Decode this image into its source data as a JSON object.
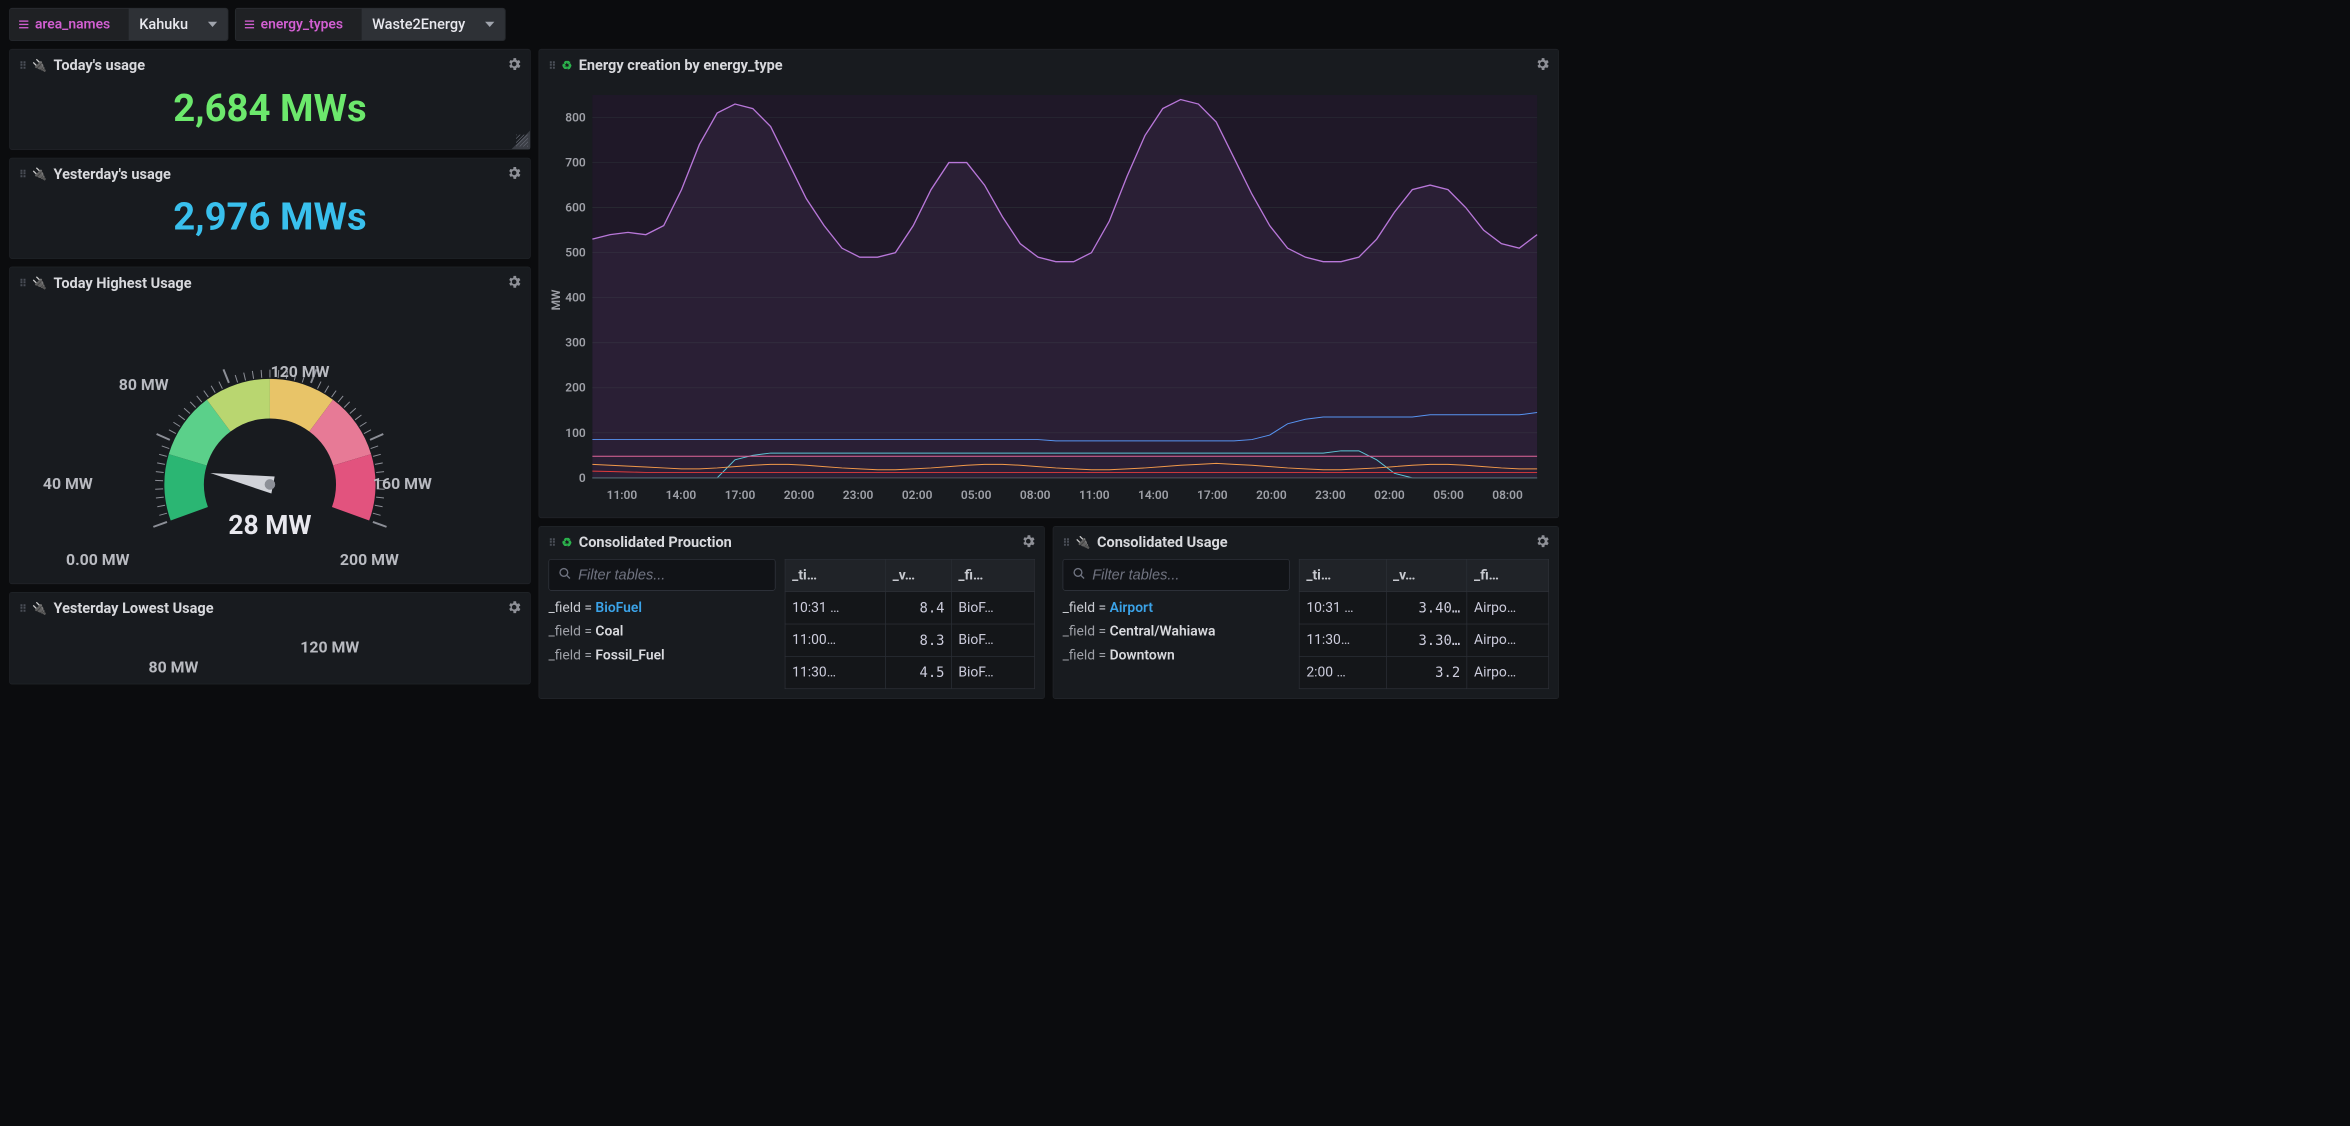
{
  "filters": {
    "area": {
      "label": "area_names",
      "value": "Kahuku"
    },
    "energy": {
      "label": "energy_types",
      "value": "Waste2Energy"
    }
  },
  "panels": {
    "today_usage": {
      "title": "Today's usage",
      "value": "2,684 MWs",
      "color": "#6ce86c"
    },
    "yesterday_usage": {
      "title": "Yesterday's usage",
      "value": "2,976 MWs",
      "color": "#39c0ed"
    },
    "today_highest": {
      "title": "Today Highest Usage",
      "value_label": "28 MW",
      "ticks": [
        "0.00 MW",
        "40 MW",
        "80 MW",
        "120 MW",
        "160 MW",
        "200 MW"
      ],
      "value": 28,
      "min": 0,
      "max": 200,
      "arc_colors": [
        "#2bb673",
        "#5bd08a",
        "#b9d670",
        "#e8c468",
        "#e77a96",
        "#e2537e"
      ]
    },
    "yesterday_lowest": {
      "title": "Yesterday Lowest Usage",
      "ticks": [
        "80 MW",
        "120 MW"
      ]
    },
    "energy_chart": {
      "title": "Energy creation by energy_type",
      "y_label": "MW",
      "y_ticks": [
        0,
        100,
        200,
        300,
        400,
        500,
        600,
        700,
        800
      ],
      "x_ticks": [
        "11:00",
        "14:00",
        "17:00",
        "20:00",
        "23:00",
        "02:00",
        "05:00",
        "08:00",
        "11:00",
        "14:00",
        "17:00",
        "20:00",
        "23:00",
        "02:00",
        "05:00",
        "08:00"
      ],
      "background_fill": "#1f1828",
      "grid_color": "#2a2d34",
      "series": [
        {
          "name": "purple",
          "color": "#b877d9",
          "width": 2,
          "y": [
            530,
            540,
            545,
            540,
            560,
            640,
            740,
            810,
            830,
            820,
            780,
            700,
            620,
            560,
            510,
            490,
            490,
            500,
            560,
            640,
            700,
            700,
            650,
            580,
            520,
            490,
            480,
            480,
            500,
            570,
            670,
            760,
            820,
            840,
            830,
            790,
            710,
            630,
            560,
            510,
            490,
            480,
            480,
            490,
            530,
            590,
            640,
            650,
            640,
            600,
            550,
            520,
            510,
            540
          ]
        },
        {
          "name": "blue",
          "color": "#5794f2",
          "width": 1.5,
          "y": [
            85,
            85,
            85,
            85,
            85,
            85,
            85,
            85,
            85,
            85,
            85,
            85,
            85,
            85,
            85,
            85,
            85,
            85,
            85,
            85,
            85,
            85,
            85,
            85,
            85,
            85,
            82,
            82,
            82,
            82,
            82,
            82,
            82,
            82,
            82,
            82,
            82,
            85,
            95,
            120,
            130,
            135,
            135,
            135,
            135,
            135,
            135,
            140,
            140,
            140,
            140,
            140,
            140,
            145
          ]
        },
        {
          "name": "cyan",
          "color": "#5ec6d6",
          "width": 1.5,
          "y": [
            0,
            0,
            0,
            0,
            0,
            0,
            0,
            0,
            40,
            50,
            55,
            55,
            55,
            55,
            55,
            55,
            55,
            55,
            55,
            55,
            55,
            55,
            55,
            55,
            55,
            55,
            55,
            55,
            55,
            55,
            55,
            55,
            55,
            55,
            55,
            55,
            55,
            55,
            55,
            55,
            55,
            55,
            60,
            60,
            40,
            10,
            0,
            0,
            0,
            0,
            0,
            0,
            0,
            0
          ]
        },
        {
          "name": "pink",
          "color": "#e06699",
          "width": 1.5,
          "y": [
            48,
            48,
            48,
            48,
            48,
            48,
            48,
            48,
            48,
            48,
            48,
            48,
            48,
            48,
            48,
            48,
            48,
            48,
            48,
            48,
            48,
            48,
            48,
            48,
            48,
            48,
            48,
            48,
            48,
            48,
            48,
            48,
            48,
            48,
            48,
            48,
            48,
            48,
            48,
            48,
            48,
            48,
            48,
            48,
            48,
            48,
            48,
            48,
            48,
            48,
            48,
            48,
            48,
            48
          ]
        },
        {
          "name": "orange",
          "color": "#f2994a",
          "width": 1.5,
          "y": [
            30,
            28,
            26,
            24,
            22,
            20,
            20,
            22,
            25,
            28,
            30,
            30,
            28,
            25,
            22,
            20,
            18,
            18,
            20,
            22,
            25,
            28,
            30,
            30,
            28,
            25,
            22,
            20,
            18,
            18,
            20,
            22,
            25,
            28,
            30,
            32,
            30,
            28,
            25,
            22,
            20,
            18,
            18,
            20,
            22,
            25,
            28,
            30,
            30,
            28,
            25,
            22,
            20,
            20
          ]
        },
        {
          "name": "red",
          "color": "#e03b3b",
          "width": 1.5,
          "y": [
            15,
            14,
            13,
            12,
            12,
            12,
            12,
            12,
            12,
            12,
            12,
            12,
            12,
            12,
            12,
            12,
            12,
            12,
            12,
            12,
            12,
            12,
            12,
            12,
            12,
            12,
            12,
            12,
            12,
            12,
            12,
            12,
            12,
            12,
            12,
            12,
            12,
            12,
            12,
            12,
            12,
            12,
            12,
            12,
            12,
            12,
            12,
            12,
            12,
            12,
            12,
            12,
            12,
            12
          ]
        }
      ],
      "ylim": [
        0,
        850
      ]
    },
    "cons_prod": {
      "title": "Consolidated Prouction",
      "filter_placeholder": "Filter tables...",
      "field_prefix": "_field = ",
      "fields": [
        "BioFuel",
        "Coal",
        "Fossil_Fuel"
      ],
      "columns": [
        "_ti…",
        "_v…",
        "_fi…"
      ],
      "rows": [
        [
          "10:31 …",
          "8.4",
          "BioF…"
        ],
        [
          "11:00…",
          "8.3",
          "BioF…"
        ],
        [
          "11:30…",
          "4.5",
          "BioF…"
        ]
      ]
    },
    "cons_usage": {
      "title": "Consolidated Usage",
      "filter_placeholder": "Filter tables...",
      "field_prefix": "_field = ",
      "fields": [
        "Airport",
        "Central/Wahiawa",
        "Downtown"
      ],
      "columns": [
        "_ti…",
        "_v…",
        "_fi…"
      ],
      "rows": [
        [
          "10:31 …",
          "3.40…",
          "Airpo…"
        ],
        [
          "11:30…",
          "3.30…",
          "Airpo…"
        ],
        [
          "2:00 …",
          "3.2",
          "Airpo…"
        ]
      ]
    }
  }
}
